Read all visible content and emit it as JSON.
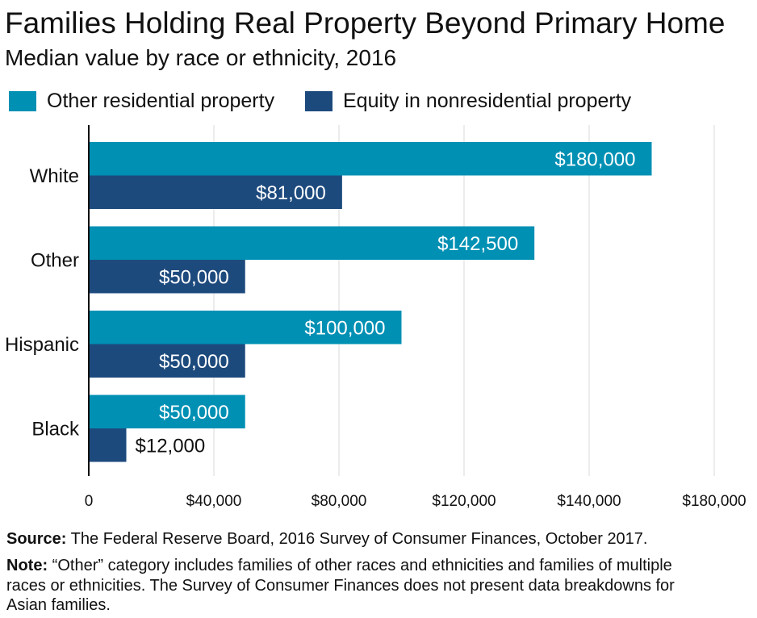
{
  "chart_data": {
    "type": "bar",
    "orientation": "horizontal",
    "title": "Families Holding Real Property Beyond Primary Home",
    "subtitle": "Median value by race or ethnicity, 2016",
    "categories": [
      "White",
      "Other",
      "Hispanic",
      "Black"
    ],
    "series": [
      {
        "name": "Other residential property",
        "color": "#0090b4",
        "values": [
          180000,
          142500,
          100000,
          50000
        ],
        "labels": [
          "$180,000",
          "$142,500",
          "$100,000",
          "$50,000"
        ]
      },
      {
        "name": "Equity in nonresidential property",
        "color": "#1d4a7d",
        "values": [
          81000,
          50000,
          50000,
          12000
        ],
        "labels": [
          "$81,000",
          "$50,000",
          "$50,000",
          "$12,000"
        ]
      }
    ],
    "xlim": [
      0,
      200000
    ],
    "xtick_labels": [
      "0",
      "$40,000",
      "$80,000",
      "$120,000",
      "$140,000",
      "$180,000"
    ],
    "grid": true,
    "legend_position": "top-left"
  },
  "footer": {
    "source_label": "Source:",
    "source_text": "The Federal Reserve Board, 2016 Survey of Consumer Finances, October 2017.",
    "note_label": "Note:",
    "note_text": "“Other” category includes families of other races and ethnicities and families of multiple races or ethnicities. The Survey of Consumer Finances does not present data breakdowns for Asian families."
  }
}
